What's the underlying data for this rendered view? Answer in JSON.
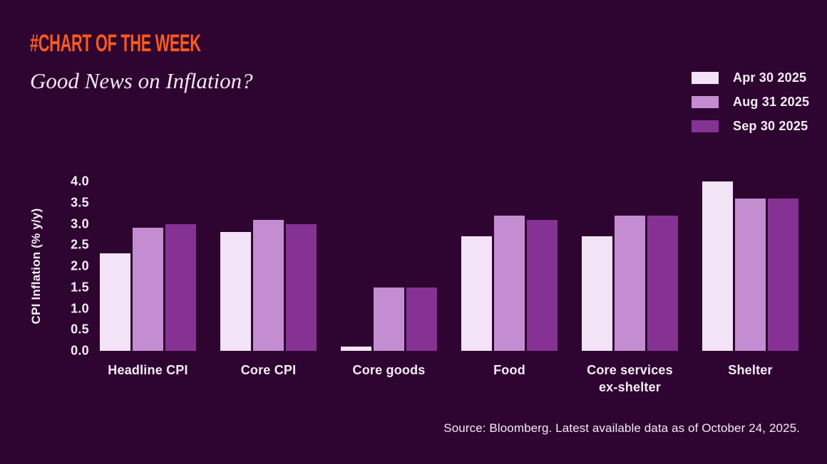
{
  "header": {
    "kicker": "#CHART OF THE WEEK",
    "title": "Good News on Inflation?"
  },
  "source_note": "Source: Bloomberg. Latest available data as of October 24, 2025.",
  "colors": {
    "background": "#2e0531",
    "accent_orange": "#f95a1e",
    "text": "#f6edf8"
  },
  "chart_data": {
    "type": "bar",
    "title": "Good News on Inflation?",
    "categories": [
      "Headline CPI",
      "Core CPI",
      "Core goods",
      "Food",
      "Core services\nex-shelter",
      "Shelter"
    ],
    "series": [
      {
        "name": "Apr 30 2025",
        "color": "#f3e3f6",
        "values": [
          2.3,
          2.8,
          0.1,
          2.7,
          2.7,
          4.0
        ]
      },
      {
        "name": "Aug 31 2025",
        "color": "#c48dd2",
        "values": [
          2.9,
          3.1,
          1.5,
          3.2,
          3.2,
          3.6
        ]
      },
      {
        "name": "Sep 30 2025",
        "color": "#853294",
        "values": [
          3.0,
          3.0,
          1.5,
          3.1,
          3.2,
          3.6
        ]
      }
    ],
    "xlabel": "",
    "ylabel": "CPI Inflation (% y/y)",
    "ylim": [
      0,
      4.0
    ],
    "ytick_step": 0.5,
    "grid": false,
    "legend_position": "top-right"
  }
}
